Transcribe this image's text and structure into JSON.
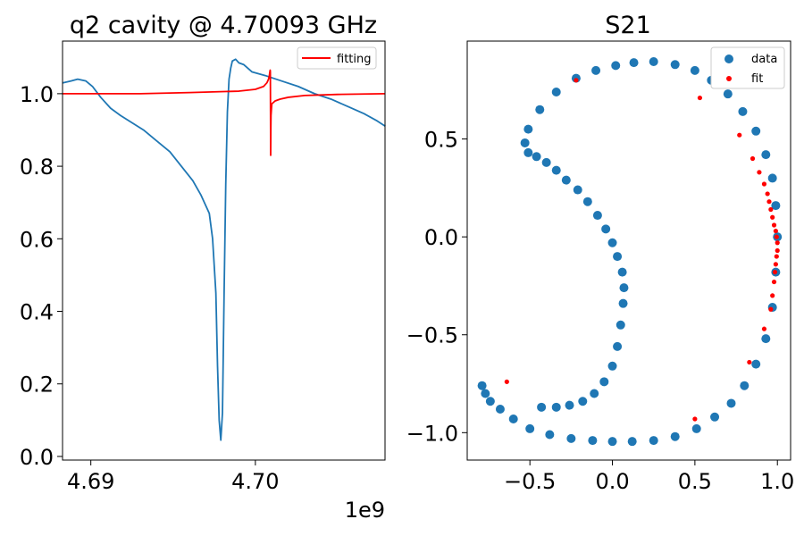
{
  "chart_data": [
    {
      "type": "line",
      "title": "q2 cavity @ 4.70093 GHz",
      "xlabel": "",
      "ylabel": "",
      "x_offset_label": "1e9",
      "x_unit_scale": 1000000000,
      "xlim": [
        4.68828,
        4.70788
      ],
      "ylim": [
        -0.01,
        1.145
      ],
      "xticks": [
        4.69,
        4.7
      ],
      "xtick_labels": [
        "4.69",
        "4.70"
      ],
      "yticks": [
        0.0,
        0.2,
        0.4,
        0.6,
        0.8,
        1.0
      ],
      "ytick_labels": [
        "0.0",
        "0.2",
        "0.4",
        "0.6",
        "0.8",
        "1.0"
      ],
      "grid": false,
      "legend_position": "top-right",
      "series": [
        {
          "color": "#1f77b4",
          "x": [
            4.6883,
            4.6888,
            4.6892,
            4.6897,
            4.6901,
            4.6906,
            4.6912,
            4.6918,
            4.6925,
            4.6932,
            4.694,
            4.6948,
            4.6955,
            4.6962,
            4.6967,
            4.697,
            4.6972,
            4.6974,
            4.6976,
            4.6977,
            4.6978,
            4.6979,
            4.698,
            4.6981,
            4.6982,
            4.6983,
            4.6984,
            4.6985,
            4.6986,
            4.6988,
            4.699,
            4.6993,
            4.6998,
            4.7006,
            4.7016,
            4.7026,
            4.7036,
            4.7046,
            4.7056,
            4.7066,
            4.7074,
            4.7079
          ],
          "y": [
            1.03,
            1.035,
            1.04,
            1.035,
            1.02,
            0.99,
            0.96,
            0.94,
            0.92,
            0.9,
            0.87,
            0.84,
            0.8,
            0.76,
            0.72,
            0.69,
            0.67,
            0.6,
            0.45,
            0.25,
            0.1,
            0.045,
            0.12,
            0.45,
            0.75,
            0.95,
            1.04,
            1.07,
            1.09,
            1.095,
            1.085,
            1.08,
            1.06,
            1.05,
            1.035,
            1.02,
            1.0,
            0.985,
            0.965,
            0.945,
            0.925,
            0.91
          ]
        },
        {
          "name": "fitting",
          "color": "#ff0000",
          "x": [
            4.6883,
            4.69,
            4.693,
            4.696,
            4.699,
            4.7,
            4.7005,
            4.7007,
            4.7008,
            4.70085,
            4.70088,
            4.7009,
            4.70091,
            4.70092,
            4.70093,
            4.70094,
            4.70095,
            4.70098,
            4.701,
            4.7012,
            4.7015,
            4.702,
            4.703,
            4.705,
            4.7079
          ],
          "y": [
            1.0,
            1.0,
            1.0,
            1.003,
            1.007,
            1.012,
            1.02,
            1.03,
            1.04,
            1.05,
            1.06,
            1.065,
            1.06,
            0.95,
            0.83,
            0.9,
            0.94,
            0.96,
            0.972,
            0.98,
            0.985,
            0.99,
            0.995,
            0.998,
            1.0
          ]
        }
      ]
    },
    {
      "type": "scatter",
      "title": "S21",
      "xlabel": "",
      "ylabel": "",
      "xlim": [
        -0.88,
        1.08
      ],
      "ylim": [
        -1.14,
        1.0
      ],
      "xticks": [
        -0.5,
        0.0,
        0.5,
        1.0
      ],
      "xtick_labels": [
        "−0.5",
        "0.0",
        "0.5",
        "1.0"
      ],
      "yticks": [
        -1.0,
        -0.5,
        0.0,
        0.5
      ],
      "ytick_labels": [
        "−1.0",
        "−0.5",
        "0.0",
        "0.5"
      ],
      "grid": false,
      "legend_position": "top-right",
      "series": [
        {
          "name": "data",
          "color": "#1f77b4",
          "x": [
            -0.79,
            -0.77,
            -0.74,
            -0.68,
            -0.6,
            -0.5,
            -0.38,
            -0.25,
            -0.12,
            0.0,
            0.12,
            0.25,
            0.38,
            0.51,
            0.62,
            0.72,
            0.8,
            0.87,
            0.93,
            0.97,
            0.99,
            1.0,
            0.99,
            0.97,
            0.93,
            0.87,
            0.79,
            0.7,
            0.6,
            0.5,
            0.38,
            0.25,
            0.13,
            0.02,
            -0.1,
            -0.22,
            -0.34,
            -0.44,
            -0.51,
            -0.53,
            -0.51,
            -0.46,
            -0.4,
            -0.34,
            -0.28,
            -0.21,
            -0.15,
            -0.09,
            -0.04,
            0.0,
            0.03,
            0.06,
            0.07,
            0.065,
            0.05,
            0.03,
            0.0,
            -0.05,
            -0.11,
            -0.18,
            -0.26,
            -0.34,
            -0.43
          ],
          "y": [
            -0.76,
            -0.8,
            -0.84,
            -0.88,
            -0.93,
            -0.98,
            -1.01,
            -1.03,
            -1.04,
            -1.045,
            -1.045,
            -1.04,
            -1.02,
            -0.98,
            -0.92,
            -0.85,
            -0.76,
            -0.65,
            -0.52,
            -0.36,
            -0.18,
            0.0,
            0.16,
            0.3,
            0.42,
            0.54,
            0.64,
            0.73,
            0.8,
            0.85,
            0.88,
            0.895,
            0.89,
            0.875,
            0.85,
            0.81,
            0.74,
            0.65,
            0.55,
            0.48,
            0.43,
            0.41,
            0.38,
            0.34,
            0.29,
            0.24,
            0.18,
            0.11,
            0.04,
            -0.03,
            -0.1,
            -0.18,
            -0.26,
            -0.34,
            -0.45,
            -0.56,
            -0.66,
            -0.74,
            -0.8,
            -0.84,
            -0.86,
            -0.87,
            -0.87
          ]
        },
        {
          "name": "fit",
          "color": "#ff0000",
          "x": [
            -0.64,
            -0.22,
            0.53,
            0.77,
            0.85,
            0.89,
            0.92,
            0.94,
            0.95,
            0.96,
            0.97,
            0.98,
            0.99,
            0.995,
            1.0,
            1.0,
            0.995,
            0.99,
            0.985,
            0.98,
            0.97,
            0.96,
            0.92,
            0.83,
            0.5
          ],
          "y": [
            -0.74,
            0.8,
            0.71,
            0.52,
            0.4,
            0.33,
            0.27,
            0.22,
            0.18,
            0.14,
            0.1,
            0.06,
            0.03,
            0.0,
            -0.03,
            -0.07,
            -0.1,
            -0.14,
            -0.18,
            -0.23,
            -0.3,
            -0.37,
            -0.47,
            -0.64,
            -0.93
          ]
        }
      ]
    }
  ]
}
